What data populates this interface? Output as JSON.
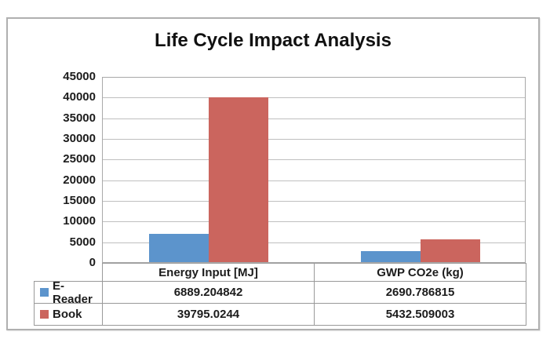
{
  "chart_data": {
    "type": "bar",
    "title": "Life Cycle Impact Analysis",
    "categories": [
      "Energy Input [MJ]",
      "GWP CO2e (kg)"
    ],
    "series": [
      {
        "name": "E-Reader",
        "color": "#5C94CC",
        "values": [
          6889.204842,
          2690.786815
        ],
        "values_text": [
          "6889.204842",
          "2690.786815"
        ]
      },
      {
        "name": "Book",
        "color": "#CB655E",
        "values": [
          39795.0244,
          5432.509003
        ],
        "values_text": [
          "39795.0244",
          "5432.509003"
        ]
      }
    ],
    "xlabel": "",
    "ylabel": "",
    "ylim": [
      0,
      45000
    ],
    "ytick_step": 5000,
    "yticks": [
      "45000",
      "40000",
      "35000",
      "30000",
      "25000",
      "20000",
      "15000",
      "10000",
      "5000",
      "0"
    ],
    "grid": true,
    "legend_position": "table-left"
  },
  "colors": {
    "gridline": "#bfbfbf",
    "plot_border": "#a9a9a9",
    "table_border": "#999999",
    "frame_border": "#b0b0b0",
    "text": "#1c1c1c"
  }
}
